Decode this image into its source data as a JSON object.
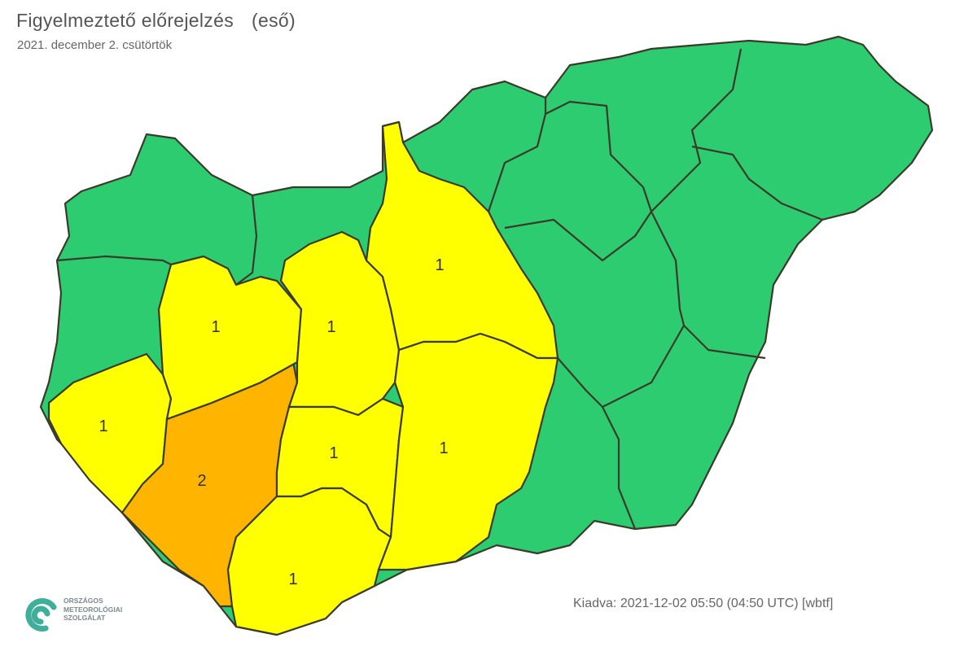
{
  "header": {
    "title": "Figyelmeztető előrejelzés",
    "phenomenon": "(eső)",
    "date": "2021. december 2. csütörtök"
  },
  "footer": {
    "issued": "Kiadva: 2021-12-02 05:50 (04:50 UTC) [wbtf]"
  },
  "logo": {
    "line1": "ORSZÁGOS",
    "line2": "METEOROLÓGIAI",
    "line3": "SZOLGÁLAT"
  },
  "colors": {
    "level0": "#2ecc71",
    "level1": "#ffff00",
    "level2": "#ffb400",
    "border": "#3a3a2a",
    "logo": "#3fae9a"
  },
  "counties": [
    {
      "id": "zala",
      "level": "1"
    },
    {
      "id": "somogy",
      "level": "2"
    },
    {
      "id": "veszprem",
      "level": "1"
    },
    {
      "id": "fejer",
      "level": "1"
    },
    {
      "id": "tolna",
      "level": "1"
    },
    {
      "id": "baranya",
      "level": "1"
    },
    {
      "id": "pest",
      "level": "1"
    },
    {
      "id": "bacs-kiskun",
      "level": "1"
    }
  ]
}
